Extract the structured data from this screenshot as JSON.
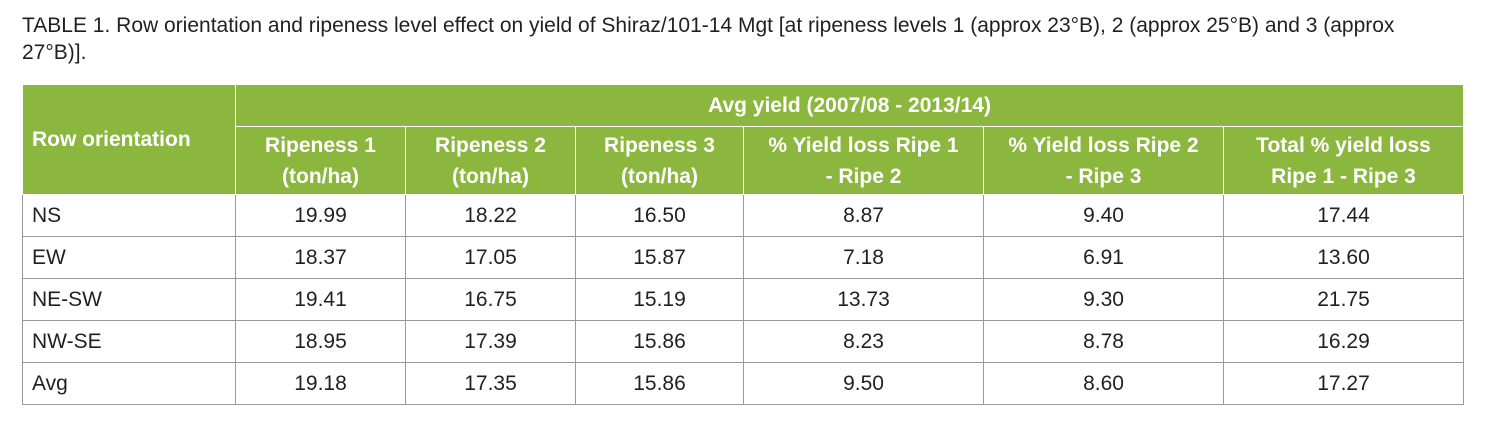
{
  "caption": "TABLE 1. Row orientation and ripeness level effect on yield of Shiraz/101-14 Mgt [at ripeness levels 1 (approx 23°B), 2 (approx 25°B) and 3 (approx 27°B)].",
  "table": {
    "row_header": "Row orientation",
    "group_header": "Avg yield (2007/08 - 2013/14)",
    "columns": [
      {
        "line1": "Ripeness 1",
        "line2": "(ton/ha)"
      },
      {
        "line1": "Ripeness 2",
        "line2": "(ton/ha)"
      },
      {
        "line1": "Ripeness 3",
        "line2": "(ton/ha)"
      },
      {
        "line1": "% Yield loss Ripe 1",
        "line2": "- Ripe 2"
      },
      {
        "line1": "% Yield loss Ripe 2",
        "line2": "- Ripe 3"
      },
      {
        "line1": "Total % yield loss",
        "line2": "Ripe 1 - Ripe 3"
      }
    ],
    "rows": [
      {
        "label": "NS",
        "values": [
          "19.99",
          "18.22",
          "16.50",
          "8.87",
          "9.40",
          "17.44"
        ]
      },
      {
        "label": "EW",
        "values": [
          "18.37",
          "17.05",
          "15.87",
          "7.18",
          "6.91",
          "13.60"
        ]
      },
      {
        "label": "NE-SW",
        "values": [
          "19.41",
          "16.75",
          "15.19",
          "13.73",
          "9.30",
          "21.75"
        ]
      },
      {
        "label": "NW-SE",
        "values": [
          "18.95",
          "17.39",
          "15.86",
          "8.23",
          "8.78",
          "16.29"
        ]
      },
      {
        "label": "Avg",
        "values": [
          "19.18",
          "17.35",
          "15.86",
          "9.50",
          "8.60",
          "17.27"
        ]
      }
    ]
  },
  "colors": {
    "header_green": "#8cb73f",
    "header_text": "#ffffff",
    "grid_line": "#9a9a9a"
  }
}
